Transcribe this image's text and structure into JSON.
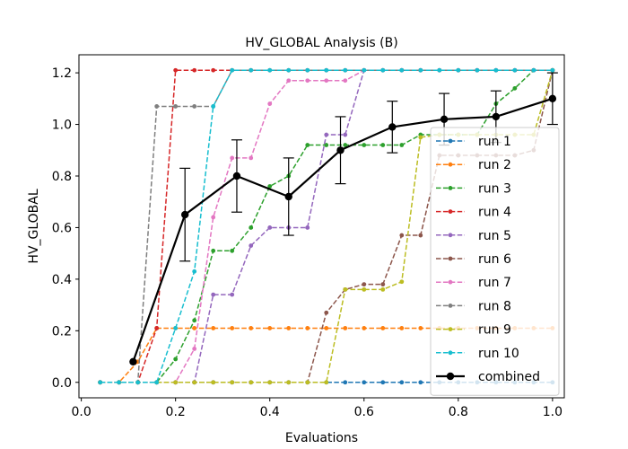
{
  "chart_data": {
    "type": "line",
    "title": "HV_GLOBAL Analysis (B)",
    "xlabel": "Evaluations",
    "ylabel": "HV_GLOBAL",
    "xlim": [
      -0.005,
      1.025
    ],
    "ylim": [
      -0.06,
      1.27
    ],
    "xticks": [
      0.0,
      0.2,
      0.4,
      0.6,
      0.8,
      1.0
    ],
    "xtick_labels": [
      "0.0",
      "0.2",
      "0.4",
      "0.6",
      "0.8",
      "1.0"
    ],
    "yticks": [
      0.0,
      0.2,
      0.4,
      0.6,
      0.8,
      1.0,
      1.2
    ],
    "ytick_labels": [
      "0.0",
      "0.2",
      "0.4",
      "0.6",
      "0.8",
      "1.0",
      "1.2"
    ],
    "grid": false,
    "legend_position": "lower-right",
    "series": [
      {
        "name": "run 1",
        "color": "#1f77b4",
        "style": "dashed",
        "x": [
          0.04,
          0.08,
          0.12,
          0.16,
          0.2,
          0.24,
          0.28,
          0.32,
          0.36,
          0.4,
          0.44,
          0.48,
          0.52,
          0.56,
          0.6,
          0.64,
          0.68,
          0.72,
          0.76,
          0.8,
          0.84,
          0.88,
          0.92,
          0.96,
          1.0
        ],
        "y": [
          0,
          0,
          0,
          0,
          0,
          0,
          0,
          0,
          0,
          0,
          0,
          0,
          0,
          0,
          0,
          0,
          0,
          0,
          0,
          0,
          0,
          0,
          0,
          0,
          0
        ]
      },
      {
        "name": "run 2",
        "color": "#ff7f0e",
        "style": "dashed",
        "x": [
          0.04,
          0.08,
          0.12,
          0.16,
          0.2,
          0.24,
          0.28,
          0.32,
          0.36,
          0.4,
          0.44,
          0.48,
          0.52,
          0.56,
          0.6,
          0.64,
          0.68,
          0.72,
          0.76,
          0.8,
          0.84,
          0.88,
          0.92,
          0.96,
          1.0
        ],
        "y": [
          0,
          0,
          0.08,
          0.21,
          0.21,
          0.21,
          0.21,
          0.21,
          0.21,
          0.21,
          0.21,
          0.21,
          0.21,
          0.21,
          0.21,
          0.21,
          0.21,
          0.21,
          0.21,
          0.21,
          0.21,
          0.21,
          0.21,
          0.21,
          0.21
        ]
      },
      {
        "name": "run 3",
        "color": "#2ca02c",
        "style": "dashed",
        "x": [
          0.04,
          0.08,
          0.12,
          0.16,
          0.2,
          0.24,
          0.28,
          0.32,
          0.36,
          0.4,
          0.44,
          0.48,
          0.52,
          0.56,
          0.6,
          0.64,
          0.68,
          0.72,
          0.76,
          0.8,
          0.84,
          0.88,
          0.92,
          0.96,
          1.0
        ],
        "y": [
          0,
          0,
          0,
          0,
          0.09,
          0.24,
          0.51,
          0.51,
          0.6,
          0.76,
          0.8,
          0.92,
          0.92,
          0.92,
          0.92,
          0.92,
          0.92,
          0.96,
          0.96,
          0.96,
          0.96,
          1.08,
          1.14,
          1.21,
          1.21
        ]
      },
      {
        "name": "run 4",
        "color": "#d62728",
        "style": "dashed",
        "x": [
          0.04,
          0.08,
          0.12,
          0.16,
          0.2,
          0.24,
          0.28,
          0.32,
          0.36,
          0.4,
          0.44,
          0.48,
          0.52,
          0.56,
          0.6,
          0.64,
          0.68,
          0.72,
          0.76,
          0.8,
          0.84,
          0.88,
          0.92,
          0.96,
          1.0
        ],
        "y": [
          0,
          0,
          0,
          0.21,
          1.21,
          1.21,
          1.21,
          1.21,
          1.21,
          1.21,
          1.21,
          1.21,
          1.21,
          1.21,
          1.21,
          1.21,
          1.21,
          1.21,
          1.21,
          1.21,
          1.21,
          1.21,
          1.21,
          1.21,
          1.21
        ]
      },
      {
        "name": "run 5",
        "color": "#9467bd",
        "style": "dashed",
        "x": [
          0.04,
          0.08,
          0.12,
          0.16,
          0.2,
          0.24,
          0.28,
          0.32,
          0.36,
          0.4,
          0.44,
          0.48,
          0.52,
          0.56,
          0.6,
          0.64,
          0.68,
          0.72,
          0.76,
          0.8,
          0.84,
          0.88,
          0.92,
          0.96,
          1.0
        ],
        "y": [
          0,
          0,
          0,
          0,
          0,
          0,
          0.34,
          0.34,
          0.53,
          0.6,
          0.6,
          0.6,
          0.96,
          0.96,
          1.21,
          1.21,
          1.21,
          1.21,
          1.21,
          1.21,
          1.21,
          1.21,
          1.21,
          1.21,
          1.21
        ]
      },
      {
        "name": "run 6",
        "color": "#8c564b",
        "style": "dashed",
        "x": [
          0.04,
          0.08,
          0.12,
          0.16,
          0.2,
          0.24,
          0.28,
          0.32,
          0.36,
          0.4,
          0.44,
          0.48,
          0.52,
          0.56,
          0.6,
          0.64,
          0.68,
          0.72,
          0.76,
          0.8,
          0.84,
          0.88,
          0.92,
          0.96,
          1.0
        ],
        "y": [
          0,
          0,
          0,
          0,
          0,
          0,
          0,
          0,
          0,
          0,
          0,
          0,
          0.27,
          0.36,
          0.38,
          0.38,
          0.57,
          0.57,
          0.88,
          0.88,
          0.88,
          0.88,
          0.88,
          0.9,
          1.21
        ]
      },
      {
        "name": "run 7",
        "color": "#e377c2",
        "style": "dashed",
        "x": [
          0.04,
          0.08,
          0.12,
          0.16,
          0.2,
          0.24,
          0.28,
          0.32,
          0.36,
          0.4,
          0.44,
          0.48,
          0.52,
          0.56,
          0.6,
          0.64,
          0.68,
          0.72,
          0.76,
          0.8,
          0.84,
          0.88,
          0.92,
          0.96,
          1.0
        ],
        "y": [
          0,
          0,
          0,
          0,
          0,
          0.13,
          0.64,
          0.87,
          0.87,
          1.08,
          1.17,
          1.17,
          1.17,
          1.17,
          1.21,
          1.21,
          1.21,
          1.21,
          1.21,
          1.21,
          1.21,
          1.21,
          1.21,
          1.21,
          1.21
        ]
      },
      {
        "name": "run 8",
        "color": "#7f7f7f",
        "style": "dashed",
        "x": [
          0.04,
          0.08,
          0.12,
          0.16,
          0.2,
          0.24,
          0.28,
          0.32,
          0.36,
          0.4,
          0.44,
          0.48,
          0.52,
          0.56,
          0.6,
          0.64,
          0.68,
          0.72,
          0.76,
          0.8,
          0.84,
          0.88,
          0.92,
          0.96,
          1.0
        ],
        "y": [
          0,
          0,
          0,
          1.07,
          1.07,
          1.07,
          1.07,
          1.21,
          1.21,
          1.21,
          1.21,
          1.21,
          1.21,
          1.21,
          1.21,
          1.21,
          1.21,
          1.21,
          1.21,
          1.21,
          1.21,
          1.21,
          1.21,
          1.21,
          1.21
        ]
      },
      {
        "name": "run 9",
        "color": "#bcbd22",
        "style": "dashed",
        "x": [
          0.04,
          0.08,
          0.12,
          0.16,
          0.2,
          0.24,
          0.28,
          0.32,
          0.36,
          0.4,
          0.44,
          0.48,
          0.52,
          0.56,
          0.6,
          0.64,
          0.68,
          0.72,
          0.76,
          0.8,
          0.84,
          0.88,
          0.92,
          0.96,
          1.0
        ],
        "y": [
          0,
          0,
          0,
          0,
          0,
          0,
          0,
          0,
          0,
          0,
          0,
          0,
          0,
          0.36,
          0.36,
          0.36,
          0.39,
          0.95,
          0.96,
          0.96,
          0.96,
          0.96,
          0.96,
          0.96,
          1.21
        ]
      },
      {
        "name": "run 10",
        "color": "#17becf",
        "style": "dashed",
        "x": [
          0.04,
          0.08,
          0.12,
          0.16,
          0.2,
          0.24,
          0.28,
          0.32,
          0.36,
          0.4,
          0.44,
          0.48,
          0.52,
          0.56,
          0.6,
          0.64,
          0.68,
          0.72,
          0.76,
          0.8,
          0.84,
          0.88,
          0.92,
          0.96,
          1.0
        ],
        "y": [
          0,
          0,
          0,
          0,
          0.21,
          0.43,
          1.07,
          1.21,
          1.21,
          1.21,
          1.21,
          1.21,
          1.21,
          1.21,
          1.21,
          1.21,
          1.21,
          1.21,
          1.21,
          1.21,
          1.21,
          1.21,
          1.21,
          1.21,
          1.21
        ]
      },
      {
        "name": "combined",
        "color": "#000000",
        "style": "solid",
        "x": [
          0.11,
          0.22,
          0.33,
          0.44,
          0.55,
          0.66,
          0.77,
          0.88,
          1.0
        ],
        "y": [
          0.08,
          0.65,
          0.8,
          0.72,
          0.9,
          0.99,
          1.02,
          1.03,
          1.1
        ],
        "err": [
          0.0,
          0.18,
          0.14,
          0.15,
          0.13,
          0.1,
          0.1,
          0.1,
          0.1
        ]
      }
    ]
  }
}
